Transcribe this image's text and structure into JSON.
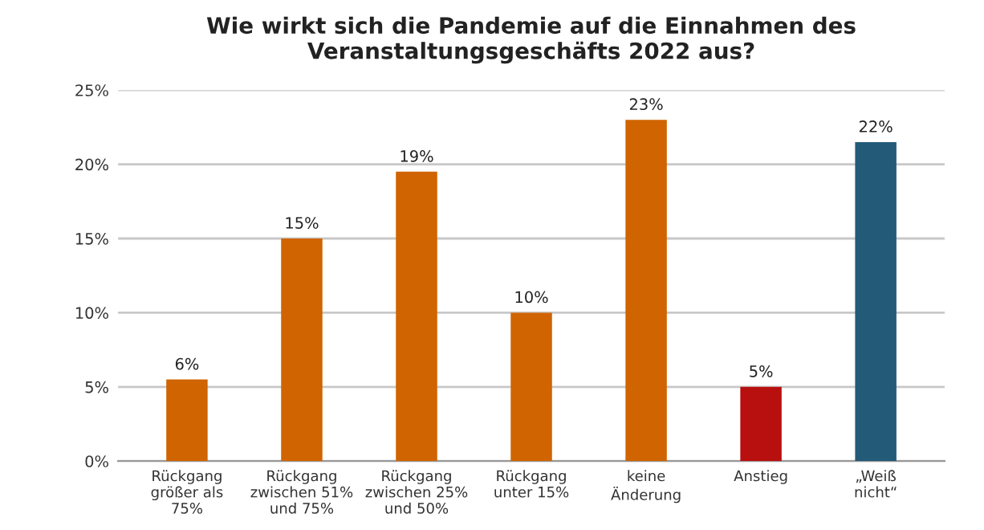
{
  "chart_data": {
    "type": "bar",
    "title": "Wie wirkt sich die Pandemie auf die Einnahmen des\nVeranstaltungsgeschäfts 2022 aus?",
    "categories": [
      "Rückgang\ngrößer als\n75%",
      "Rückgang\nzwischen 51%\nund 75%",
      "Rückgang\nzwischen 25%\nund 50%",
      "Rückgang\nunter 15%",
      "keine\nÄnderung",
      "Anstieg",
      "„Weiß\nnicht“"
    ],
    "values": [
      5.5,
      15,
      19.5,
      10,
      23,
      5,
      21.5
    ],
    "value_labels": [
      "6%",
      "15%",
      "19%",
      "10%",
      "23%",
      "5%",
      "22%"
    ],
    "colors": [
      "#d06400",
      "#d06400",
      "#d06400",
      "#d06400",
      "#d06400",
      "#b80f0f",
      "#235a78"
    ],
    "ylim": [
      0,
      25
    ],
    "yticks": [
      {
        "value": 0,
        "label": "0%"
      },
      {
        "value": 5,
        "label": "5%"
      },
      {
        "value": 10,
        "label": "10%"
      },
      {
        "value": 15,
        "label": "15%"
      },
      {
        "value": 20,
        "label": "20%"
      },
      {
        "value": 25,
        "label": "25%"
      }
    ],
    "grid": "y"
  }
}
